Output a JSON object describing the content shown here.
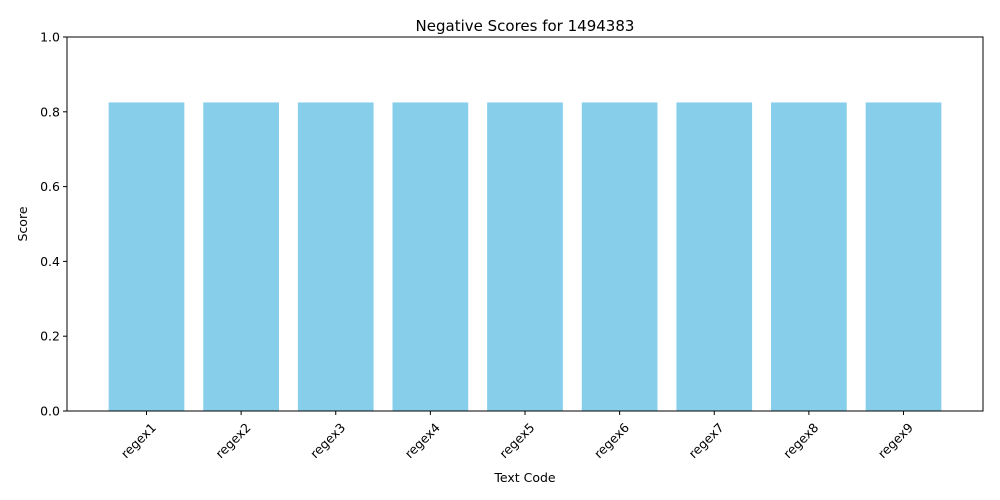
{
  "chart_data": {
    "type": "bar",
    "title": "Negative Scores for 1494383",
    "xlabel": "Text Code",
    "ylabel": "Score",
    "categories": [
      "regex1",
      "regex2",
      "regex3",
      "regex4",
      "regex5",
      "regex6",
      "regex7",
      "regex8",
      "regex9"
    ],
    "values": [
      0.825,
      0.825,
      0.825,
      0.825,
      0.825,
      0.825,
      0.825,
      0.825,
      0.825
    ],
    "ylim": [
      0,
      1.0
    ],
    "yticks": [
      "0.0",
      "0.2",
      "0.4",
      "0.6",
      "0.8",
      "1.0"
    ],
    "bar_color": "#87CEEB",
    "grid": false,
    "legend": "none",
    "xtick_rotation": "45 degrees"
  }
}
